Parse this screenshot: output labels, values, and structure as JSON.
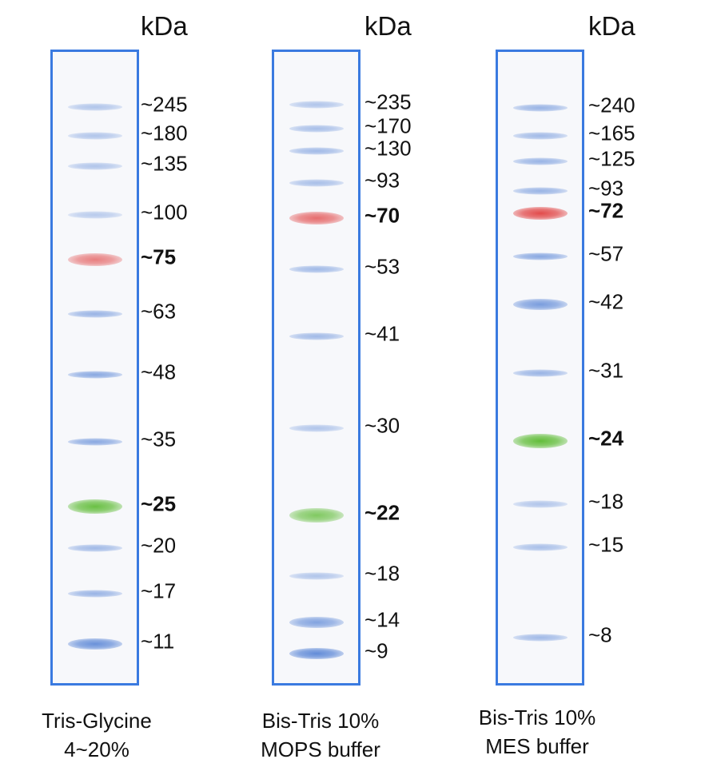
{
  "unit_label": "kDa",
  "colors": {
    "frame": "#3a7ae0",
    "blue_band": "#5a86d6",
    "red_band": "#e24b4b",
    "green_band": "#62bd3a"
  },
  "panels": [
    {
      "caption_line1": "Tris-Glycine",
      "caption_line2": "4~20%",
      "bands": [
        {
          "label": "~245",
          "bold": false,
          "color": "blue",
          "intensity": 0.45
        },
        {
          "label": "~180",
          "bold": false,
          "color": "blue",
          "intensity": 0.45
        },
        {
          "label": "~135",
          "bold": false,
          "color": "blue",
          "intensity": 0.45
        },
        {
          "label": "~100",
          "bold": false,
          "color": "blue",
          "intensity": 0.4
        },
        {
          "label": "~75",
          "bold": true,
          "color": "red",
          "intensity": 0.7
        },
        {
          "label": "~63",
          "bold": false,
          "color": "blue",
          "intensity": 0.6
        },
        {
          "label": "~48",
          "bold": false,
          "color": "blue",
          "intensity": 0.7
        },
        {
          "label": "~35",
          "bold": false,
          "color": "blue",
          "intensity": 0.7
        },
        {
          "label": "~25",
          "bold": true,
          "color": "green",
          "intensity": 0.95
        },
        {
          "label": "~20",
          "bold": false,
          "color": "blue",
          "intensity": 0.55
        },
        {
          "label": "~17",
          "bold": false,
          "color": "blue",
          "intensity": 0.6
        },
        {
          "label": "~11",
          "bold": false,
          "color": "blue",
          "intensity": 0.9
        }
      ]
    },
    {
      "caption_line1": "Bis-Tris 10%",
      "caption_line2": "MOPS buffer",
      "bands": [
        {
          "label": "~235",
          "bold": false,
          "color": "blue",
          "intensity": 0.45
        },
        {
          "label": "~170",
          "bold": false,
          "color": "blue",
          "intensity": 0.5
        },
        {
          "label": "~130",
          "bold": false,
          "color": "blue",
          "intensity": 0.55
        },
        {
          "label": "~93",
          "bold": false,
          "color": "blue",
          "intensity": 0.5
        },
        {
          "label": "~70",
          "bold": true,
          "color": "red",
          "intensity": 0.8
        },
        {
          "label": "~53",
          "bold": false,
          "color": "blue",
          "intensity": 0.55
        },
        {
          "label": "~41",
          "bold": false,
          "color": "blue",
          "intensity": 0.55
        },
        {
          "label": "~30",
          "bold": false,
          "color": "blue",
          "intensity": 0.45
        },
        {
          "label": "~22",
          "bold": true,
          "color": "green",
          "intensity": 0.8
        },
        {
          "label": "~18",
          "bold": false,
          "color": "blue",
          "intensity": 0.45
        },
        {
          "label": "~14",
          "bold": false,
          "color": "blue",
          "intensity": 0.75
        },
        {
          "label": "~9",
          "bold": false,
          "color": "blue",
          "intensity": 0.95
        }
      ]
    },
    {
      "caption_line1": "Bis-Tris 10%",
      "caption_line2": "MES buffer",
      "bands": [
        {
          "label": "~240",
          "bold": false,
          "color": "blue",
          "intensity": 0.6
        },
        {
          "label": "~165",
          "bold": false,
          "color": "blue",
          "intensity": 0.55
        },
        {
          "label": "~125",
          "bold": false,
          "color": "blue",
          "intensity": 0.6
        },
        {
          "label": "~93",
          "bold": false,
          "color": "blue",
          "intensity": 0.6
        },
        {
          "label": "~72",
          "bold": true,
          "color": "red",
          "intensity": 1.0
        },
        {
          "label": "~57",
          "bold": false,
          "color": "blue",
          "intensity": 0.7
        },
        {
          "label": "~42",
          "bold": false,
          "color": "blue",
          "intensity": 0.8
        },
        {
          "label": "~31",
          "bold": false,
          "color": "blue",
          "intensity": 0.6
        },
        {
          "label": "~24",
          "bold": true,
          "color": "green",
          "intensity": 1.0
        },
        {
          "label": "~18",
          "bold": false,
          "color": "blue",
          "intensity": 0.45
        },
        {
          "label": "~15",
          "bold": false,
          "color": "blue",
          "intensity": 0.5
        },
        {
          "label": "~8",
          "bold": false,
          "color": "blue",
          "intensity": 0.55
        }
      ]
    }
  ]
}
